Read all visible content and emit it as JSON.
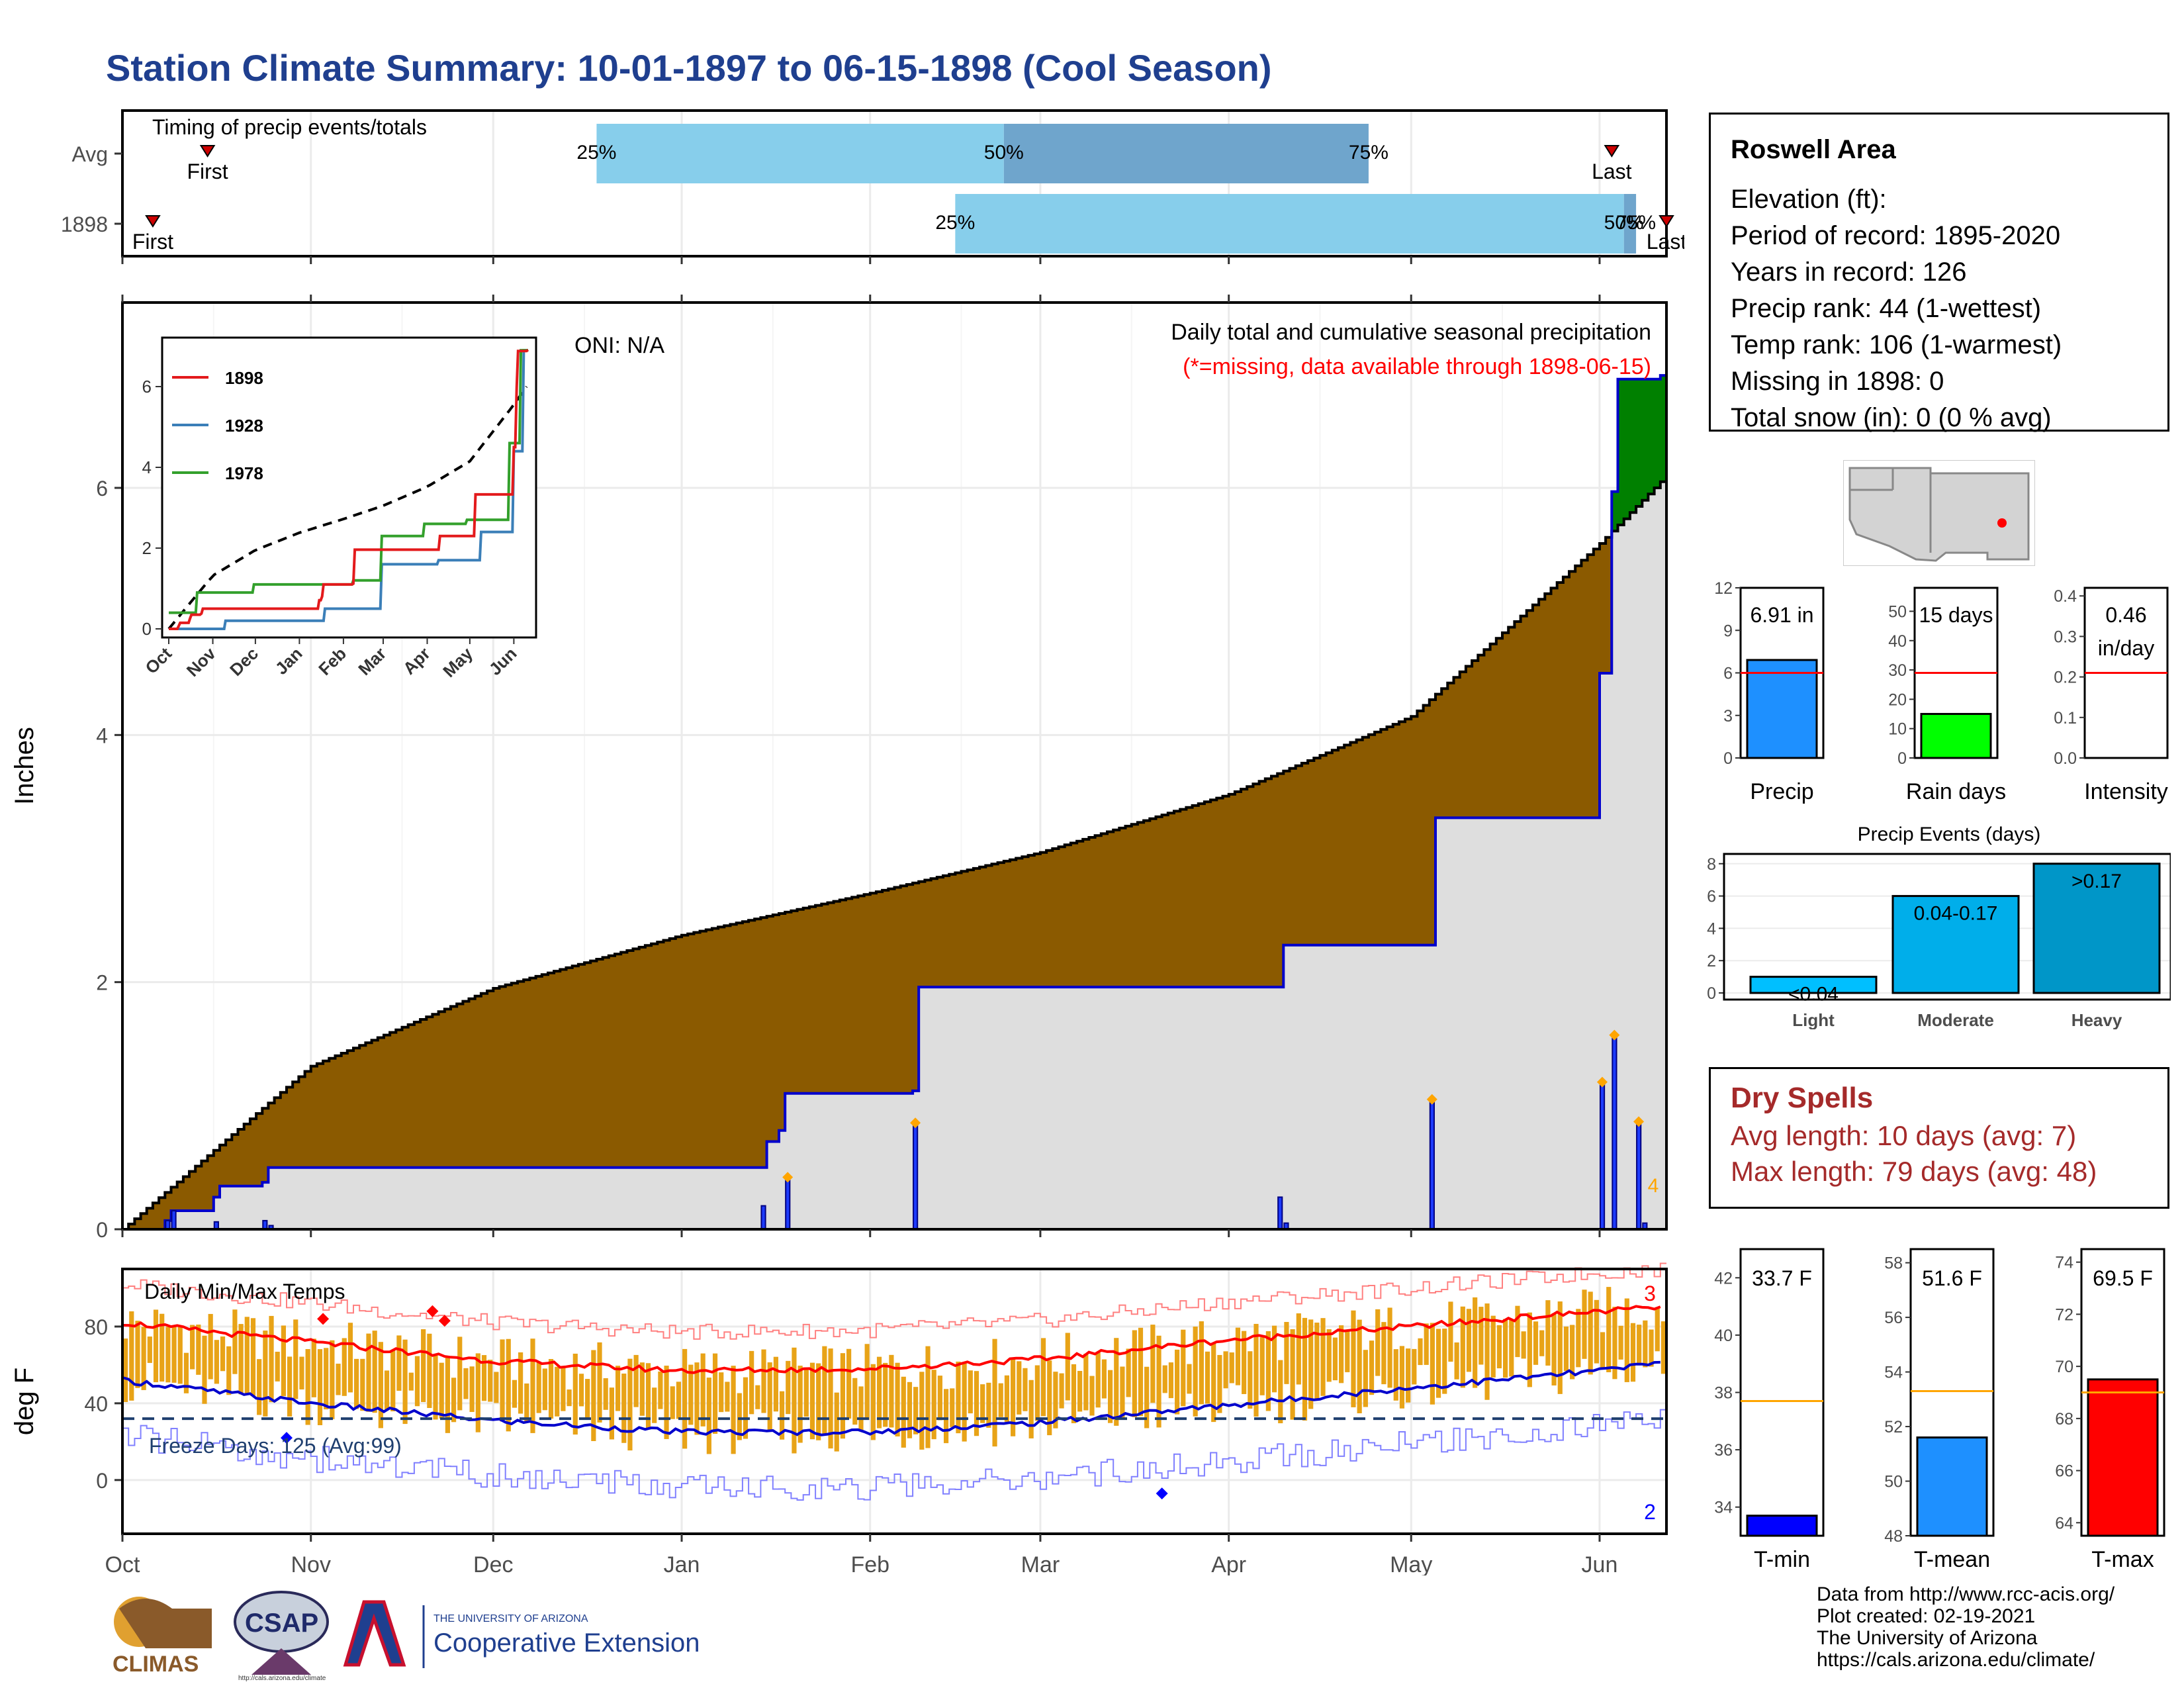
{
  "title": "Station Climate Summary: 10-01-1897 to 06-15-1898 (Cool Season)",
  "timing": {
    "title": "Timing of precip events/totals",
    "rows": [
      {
        "label": "Avg",
        "first_day": 14,
        "last_day": 245,
        "p25_day": 78,
        "p50_day": 145,
        "p75_day": 205,
        "first_label": "First",
        "last_label": "Last",
        "p25_label": "25%",
        "p50_label": "50%",
        "p75_label": "75%"
      },
      {
        "label": "1898",
        "first_day": 5,
        "last_day": 254,
        "p25_day": 137,
        "p50_day": 247,
        "p75_day": 249,
        "first_label": "First",
        "last_label": "Last",
        "p25_label": "25%",
        "p50_label": "50%",
        "p75_label": "75%"
      }
    ]
  },
  "info": {
    "name": "Roswell Area",
    "lines": [
      "Elevation (ft):",
      "Period of record: 1895-2020",
      "Years in record: 126",
      "Precip rank: 44 (1-wettest)",
      "Temp rank: 106 (1-warmest)",
      "Missing in 1898: 0",
      "Total snow (in): 0 (0 % avg)"
    ]
  },
  "main_chart": {
    "ylabel": "Inches",
    "oni": "ONI: N/A",
    "legend_title": "Daily total and cumulative seasonal precipitation",
    "missing_note": "(*=missing, data available through 1898-06-15)",
    "count_label": "4",
    "xticks": [
      {
        "label": "Oct",
        "day": 0
      },
      {
        "label": "Nov",
        "day": 31
      },
      {
        "label": "Dec",
        "day": 61
      },
      {
        "label": "Jan",
        "day": 92
      },
      {
        "label": "Feb",
        "day": 123
      },
      {
        "label": "Mar",
        "day": 151
      },
      {
        "label": "Apr",
        "day": 182
      },
      {
        "label": "May",
        "day": 212
      },
      {
        "label": "Jun",
        "day": 243
      }
    ],
    "yticks": [
      0,
      2,
      4,
      6
    ]
  },
  "inset": {
    "ylabel_ticks": [
      0,
      2,
      4,
      6
    ],
    "xticks": [
      "Oct",
      "Nov",
      "Dec",
      "Jan",
      "Feb",
      "Mar",
      "Apr",
      "May",
      "Jun"
    ],
    "legend": [
      {
        "name": "1898",
        "color": "#e31a1c"
      },
      {
        "name": "1928",
        "color": "#3b7fb8"
      },
      {
        "name": "1978",
        "color": "#33a02c"
      }
    ]
  },
  "temps": {
    "title": "Daily Min/Max Temps",
    "ylabel": "deg F",
    "freeze_label": "Freeze Days: 125 (Avg:99)",
    "record_high_count": "3",
    "record_low_count": "2",
    "yticks": [
      0,
      40,
      80
    ],
    "freeze_line": 32
  },
  "bars": {
    "precip": {
      "value_label": "6.91 in",
      "value": 6.91,
      "avg": 6.0,
      "ymax": 12,
      "ticks": [
        0,
        3,
        6,
        9,
        12
      ],
      "xlabel": "Precip",
      "color": "#1e90ff"
    },
    "raindays": {
      "value_label": "15 days",
      "value": 15,
      "avg": 29,
      "ymax": 58,
      "ticks": [
        0,
        10,
        20,
        30,
        40,
        50
      ],
      "xlabel": "Rain days",
      "color": "#00ff00"
    },
    "intensity": {
      "value_label": "0.46",
      "value_label2": "in/day",
      "value": 0.46,
      "avg": 0.21,
      "ymax": 0.42,
      "ticks": [
        "0.0",
        "0.1",
        "0.2",
        "0.3",
        "0.4"
      ],
      "xlabel": "Intensity",
      "color": "#ffffff"
    }
  },
  "events": {
    "title": "Precip Events (days)",
    "categories": [
      "Light",
      "Moderate",
      "Heavy"
    ],
    "values": [
      1,
      6,
      8
    ],
    "labels": [
      "<0.04",
      "0.04-0.17",
      ">0.17"
    ],
    "colors": [
      "#00bfff",
      "#00aeea",
      "#0096c8"
    ],
    "ticks": [
      0,
      2,
      4,
      6,
      8
    ]
  },
  "dry_spells": {
    "title": "Dry Spells",
    "avg_line": "Avg length: 10 days (avg: 7)",
    "max_line": "Max length: 79 days (avg: 48)"
  },
  "temp_bars": {
    "tmin": {
      "value_label": "33.7 F",
      "value": 33.7,
      "avg": 37.7,
      "ymin": 33,
      "ymax": 43,
      "ticks": [
        34,
        36,
        38,
        40,
        42
      ],
      "xlabel": "T-min",
      "color": "#0000ff"
    },
    "tmean": {
      "value_label": "51.6 F",
      "value": 51.6,
      "avg": 53.3,
      "ymin": 48,
      "ymax": 58.5,
      "ticks": [
        48,
        50,
        52,
        54,
        56,
        58
      ],
      "xlabel": "T-mean",
      "color": "#1e90ff"
    },
    "tmax": {
      "value_label": "69.5 F",
      "value": 69.5,
      "avg": 69.0,
      "ymin": 63.5,
      "ymax": 74.5,
      "ticks": [
        64,
        66,
        68,
        70,
        72,
        74
      ],
      "xlabel": "T-max",
      "color": "#ff0000"
    }
  },
  "credits": [
    "Data from http://www.rcc-acis.org/",
    "Plot created: 02-19-2021",
    "The University of Arizona",
    "https://cals.arizona.edu/climate/"
  ],
  "logos": {
    "climas": "CLIMAS",
    "csap": "CSAP",
    "csap_url": "http://cals.arizona.edu/climate",
    "ua_small": "THE UNIVERSITY OF ARIZONA",
    "ua_big": "Cooperative Extension"
  },
  "chart_data": [
    {
      "type": "area",
      "title": "Daily total and cumulative seasonal precipitation",
      "ylabel": "Inches",
      "ylim": [
        0,
        7.5
      ],
      "x_unit": "days since Oct 1",
      "series": [
        {
          "name": "Avg cumulative",
          "x": [
            0,
            31,
            61,
            92,
            123,
            151,
            182,
            212,
            243,
            253
          ],
          "values": [
            0,
            1.32,
            1.95,
            2.38,
            2.72,
            3.05,
            3.52,
            4.15,
            5.55,
            6.05
          ]
        },
        {
          "name": "1898 cumulative",
          "x": [
            0,
            7,
            8,
            15,
            16,
            23,
            24,
            105,
            106,
            108,
            109,
            130,
            131,
            190,
            191,
            215,
            216,
            242,
            243,
            245,
            246,
            253
          ],
          "values": [
            0,
            0.07,
            0.15,
            0.26,
            0.35,
            0.38,
            0.5,
            0.5,
            0.71,
            0.8,
            1.1,
            1.12,
            1.96,
            1.96,
            2.3,
            2.3,
            3.33,
            3.33,
            4.5,
            5.97,
            6.88,
            6.91
          ]
        },
        {
          "name": "1898 daily",
          "x": [
            7,
            8,
            15,
            23,
            24,
            105,
            109,
            130,
            190,
            191,
            215,
            243,
            245,
            249,
            250
          ],
          "values": [
            0.07,
            0.15,
            0.06,
            0.07,
            0.03,
            0.19,
            0.4,
            0.84,
            0.26,
            0.05,
            1.03,
            1.17,
            1.55,
            0.85,
            0.05
          ]
        }
      ]
    },
    {
      "type": "line",
      "title": "Daily Min/Max Temps",
      "ylabel": "deg F",
      "x_unit": "days since Oct 1",
      "series": [
        {
          "name": "Avg max",
          "x": [
            0,
            31,
            61,
            92,
            123,
            151,
            182,
            212,
            243,
            253
          ],
          "values": [
            82,
            72,
            62,
            57,
            58,
            63,
            73,
            80,
            88,
            90
          ]
        },
        {
          "name": "Avg min",
          "x": [
            0,
            31,
            61,
            92,
            123,
            151,
            182,
            212,
            243,
            253
          ],
          "values": [
            52,
            40,
            31,
            25,
            25,
            30,
            39,
            48,
            57,
            61
          ]
        },
        {
          "name": "Freeze",
          "x": [
            0,
            253
          ],
          "values": [
            32,
            32
          ]
        }
      ]
    }
  ]
}
